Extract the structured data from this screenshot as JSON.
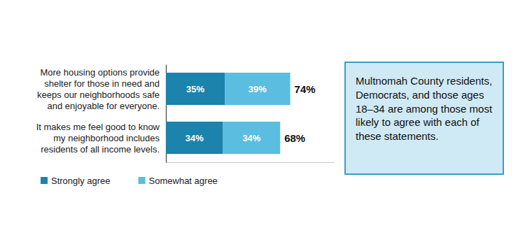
{
  "chart_data": {
    "type": "bar",
    "orientation": "horizontal",
    "stacked": true,
    "data_labels": true,
    "tick_labels": false,
    "categories": [
      "More housing options provide shelter for those in need and keeps our neighborhoods safe and enjoyable for everyone.",
      "It makes me feel good to know my neighborhood includes residents of all income levels."
    ],
    "series": [
      {
        "name": "Strongly agree",
        "color": "#1b83ac",
        "values": [
          35,
          34
        ],
        "value_labels": [
          "35%",
          "34%"
        ]
      },
      {
        "name": "Somewhat agree",
        "color": "#5bbde0",
        "values": [
          39,
          34
        ],
        "value_labels": [
          "39%",
          "34%"
        ]
      }
    ],
    "totals": [
      74,
      68
    ],
    "total_labels": [
      "74%",
      "68%"
    ],
    "xlim": [
      0,
      100
    ],
    "annotation": "Multnomah County residents, Democrats, and those ages 18–34 are among those most likely to agree with each of these statements."
  }
}
